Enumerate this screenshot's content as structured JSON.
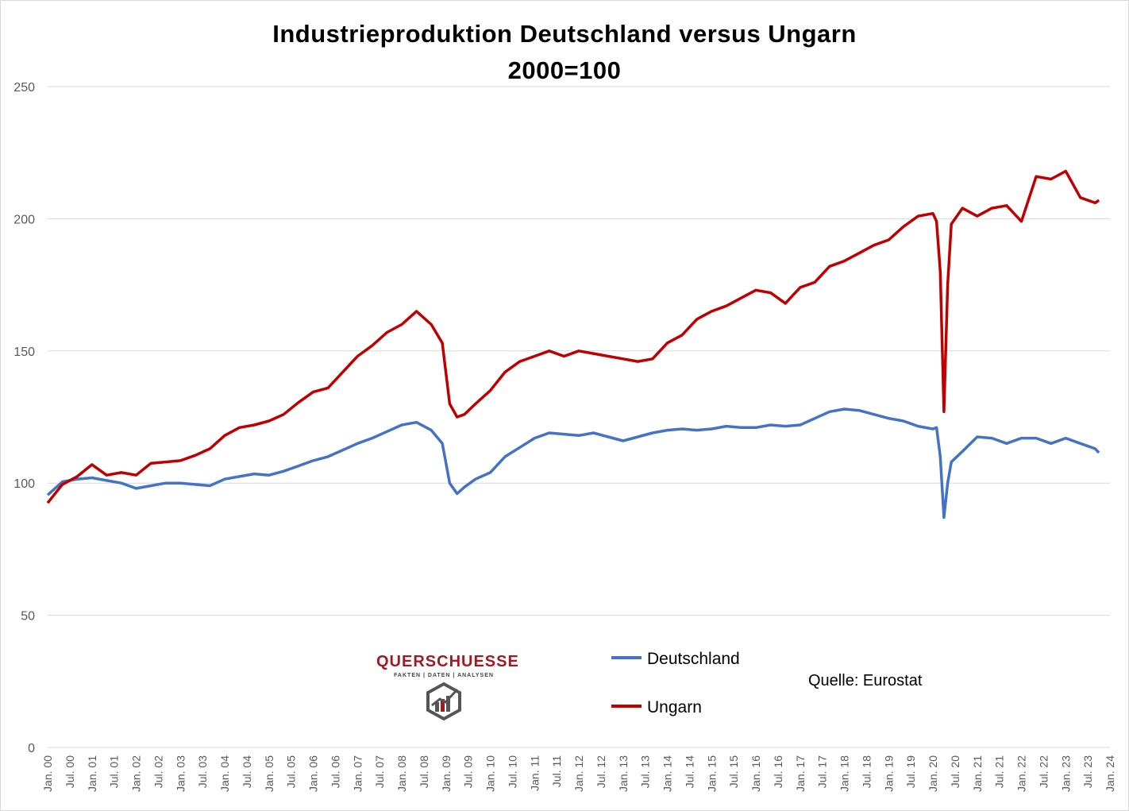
{
  "title_line1": "Industrieproduktion Deutschland versus Ungarn",
  "title_line2": "2000=100",
  "source": "Quelle: Eurostat",
  "brand": {
    "name": "QUERSCHUESSE",
    "tagline": "FAKTEN | DATEN | ANALYSEN"
  },
  "colors": {
    "deutschland": "#4472c4",
    "ungarn": "#c00000",
    "grid": "#d9d9d9",
    "axis_text": "#595959"
  },
  "chart_data": {
    "type": "line",
    "title": "Industrieproduktion Deutschland versus Ungarn 2000=100",
    "xlabel": "",
    "ylabel": "",
    "ylim": [
      0,
      250
    ],
    "yticks": [
      0,
      50,
      100,
      150,
      200,
      250
    ],
    "xlim": [
      "2000-01",
      "2024-01"
    ],
    "xtick_labels": [
      "Jan. 00",
      "Jul. 00",
      "Jan. 01",
      "Jul. 01",
      "Jan. 02",
      "Jul. 02",
      "Jan. 03",
      "Jul. 03",
      "Jan. 04",
      "Jul. 04",
      "Jan. 05",
      "Jul. 05",
      "Jan. 06",
      "Jul. 06",
      "Jan. 07",
      "Jul. 07",
      "Jan. 08",
      "Jul. 08",
      "Jan. 09",
      "Jul. 09",
      "Jan. 10",
      "Jul. 10",
      "Jan. 11",
      "Jul. 11",
      "Jan. 12",
      "Jul. 12",
      "Jan. 13",
      "Jul. 13",
      "Jan. 14",
      "Jul. 14",
      "Jan. 15",
      "Jul. 15",
      "Jan. 16",
      "Jul. 16",
      "Jan. 17",
      "Jul. 17",
      "Jan. 18",
      "Jul. 18",
      "Jan. 19",
      "Jul. 19",
      "Jan. 20",
      "Jul. 20",
      "Jan. 21",
      "Jul. 21",
      "Jan. 22",
      "Jul. 22",
      "Jan. 23",
      "Jul. 23",
      "Jan. 24"
    ],
    "grid": true,
    "legend_position": "bottom-center",
    "series": [
      {
        "name": "Deutschland",
        "x": [
          "2000-01",
          "2000-05",
          "2000-09",
          "2001-01",
          "2001-05",
          "2001-09",
          "2002-01",
          "2002-05",
          "2002-09",
          "2003-01",
          "2003-05",
          "2003-09",
          "2004-01",
          "2004-05",
          "2004-09",
          "2005-01",
          "2005-05",
          "2005-09",
          "2006-01",
          "2006-05",
          "2006-09",
          "2007-01",
          "2007-05",
          "2007-09",
          "2008-01",
          "2008-05",
          "2008-09",
          "2008-12",
          "2009-02",
          "2009-04",
          "2009-06",
          "2009-09",
          "2010-01",
          "2010-05",
          "2010-09",
          "2011-01",
          "2011-05",
          "2011-09",
          "2012-01",
          "2012-05",
          "2012-09",
          "2013-01",
          "2013-05",
          "2013-09",
          "2014-01",
          "2014-05",
          "2014-09",
          "2015-01",
          "2015-05",
          "2015-09",
          "2016-01",
          "2016-05",
          "2016-09",
          "2017-01",
          "2017-05",
          "2017-09",
          "2018-01",
          "2018-05",
          "2018-09",
          "2019-01",
          "2019-05",
          "2019-09",
          "2020-01",
          "2020-02",
          "2020-03",
          "2020-04",
          "2020-05",
          "2020-06",
          "2020-09",
          "2021-01",
          "2021-05",
          "2021-09",
          "2022-01",
          "2022-05",
          "2022-09",
          "2023-01",
          "2023-05",
          "2023-09",
          "2023-10"
        ],
        "values": [
          95.5,
          100.5,
          101.5,
          102.0,
          101.0,
          100.0,
          98.0,
          99.0,
          100.0,
          100.0,
          99.5,
          99.0,
          101.5,
          102.5,
          103.5,
          103.0,
          104.5,
          106.5,
          108.5,
          110.0,
          112.5,
          115.0,
          117.0,
          119.5,
          122.0,
          123.0,
          120.0,
          115.0,
          100.0,
          96.0,
          98.5,
          101.5,
          104.0,
          110.0,
          113.5,
          117.0,
          119.0,
          118.5,
          118.0,
          119.0,
          117.5,
          116.0,
          117.5,
          119.0,
          120.0,
          120.5,
          120.0,
          120.5,
          121.5,
          121.0,
          121.0,
          122.0,
          121.5,
          122.0,
          124.5,
          127.0,
          128.0,
          127.5,
          126.0,
          124.5,
          123.5,
          121.5,
          120.5,
          121.0,
          110.0,
          87.0,
          100.0,
          108.0,
          112.0,
          117.5,
          117.0,
          115.0,
          117.0,
          117.0,
          115.0,
          117.0,
          115.0,
          113.0,
          111.5
        ]
      },
      {
        "name": "Ungarn",
        "x": [
          "2000-01",
          "2000-05",
          "2000-09",
          "2001-01",
          "2001-05",
          "2001-09",
          "2002-01",
          "2002-05",
          "2002-09",
          "2003-01",
          "2003-05",
          "2003-09",
          "2004-01",
          "2004-05",
          "2004-09",
          "2005-01",
          "2005-05",
          "2005-09",
          "2006-01",
          "2006-05",
          "2006-09",
          "2007-01",
          "2007-05",
          "2007-09",
          "2008-01",
          "2008-05",
          "2008-09",
          "2008-12",
          "2009-02",
          "2009-04",
          "2009-06",
          "2009-09",
          "2010-01",
          "2010-05",
          "2010-09",
          "2011-01",
          "2011-05",
          "2011-09",
          "2012-01",
          "2012-05",
          "2012-09",
          "2013-01",
          "2013-05",
          "2013-09",
          "2014-01",
          "2014-05",
          "2014-09",
          "2015-01",
          "2015-05",
          "2015-09",
          "2016-01",
          "2016-05",
          "2016-09",
          "2017-01",
          "2017-05",
          "2017-09",
          "2018-01",
          "2018-05",
          "2018-09",
          "2019-01",
          "2019-05",
          "2019-09",
          "2020-01",
          "2020-02",
          "2020-03",
          "2020-04",
          "2020-05",
          "2020-06",
          "2020-09",
          "2021-01",
          "2021-05",
          "2021-09",
          "2022-01",
          "2022-05",
          "2022-09",
          "2023-01",
          "2023-05",
          "2023-09",
          "2023-10"
        ],
        "values": [
          92.5,
          99.5,
          102.5,
          107.0,
          103.0,
          104.0,
          103.0,
          107.5,
          108.0,
          108.5,
          110.5,
          113.0,
          118.0,
          121.0,
          122.0,
          123.5,
          126.0,
          130.5,
          134.5,
          136.0,
          142.0,
          148.0,
          152.0,
          157.0,
          160.0,
          165.0,
          160.0,
          153.0,
          130.0,
          125.0,
          126.0,
          130.0,
          135.0,
          142.0,
          146.0,
          148.0,
          150.0,
          148.0,
          150.0,
          149.0,
          148.0,
          147.0,
          146.0,
          147.0,
          153.0,
          156.0,
          162.0,
          165.0,
          167.0,
          170.0,
          173.0,
          172.0,
          168.0,
          174.0,
          176.0,
          182.0,
          184.0,
          187.0,
          190.0,
          192.0,
          197.0,
          201.0,
          202.0,
          199.0,
          180.0,
          127.0,
          175.0,
          198.0,
          204.0,
          201.0,
          204.0,
          205.0,
          199.0,
          216.0,
          215.0,
          218.0,
          208.0,
          206.0,
          207.0
        ]
      }
    ]
  }
}
